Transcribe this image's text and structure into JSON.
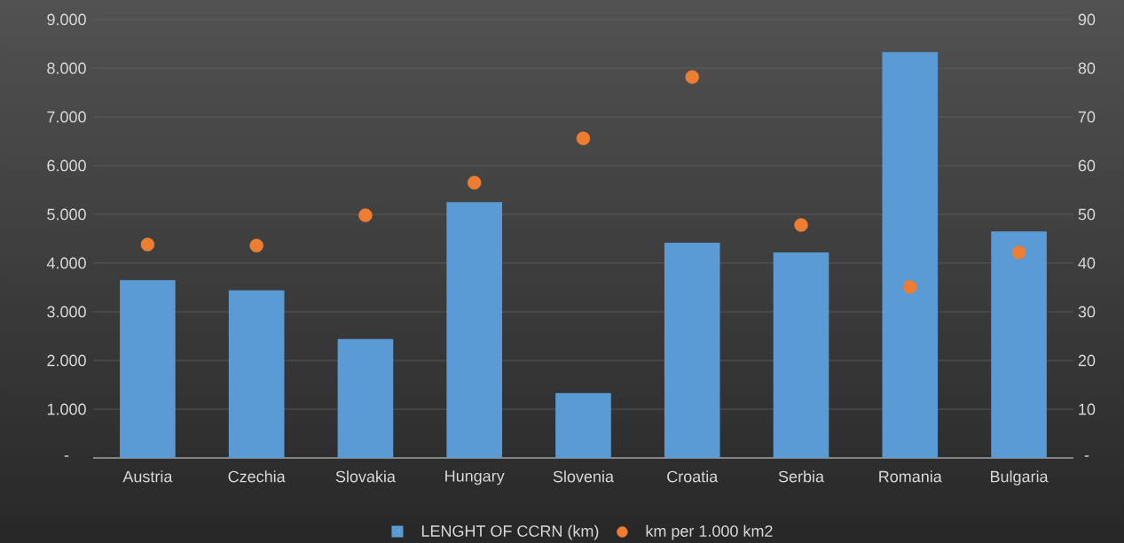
{
  "chart_data": {
    "type": "bar",
    "categories": [
      "Austria",
      "Czechia",
      "Slovakia",
      "Hungary",
      "Slovenia",
      "Croatia",
      "Serbia",
      "Romania",
      "Bulgaria"
    ],
    "series": [
      {
        "name": "LENGHT OF CCRN (km)",
        "axis": "y",
        "color": "#5b9bd5",
        "values": [
          3650,
          3440,
          2440,
          5250,
          1330,
          4420,
          4220,
          8330,
          4650
        ]
      },
      {
        "name": "km per 1.000 km2",
        "type": "scatter",
        "axis": "y2",
        "color": "#ed7d31",
        "values": [
          43.8,
          43.6,
          49.8,
          56.5,
          65.6,
          78.2,
          47.8,
          35.1,
          42.2
        ]
      }
    ],
    "ylim": [
      0,
      9000
    ],
    "yticks": [
      {
        "value": 0,
        "label": "-"
      },
      {
        "value": 1000,
        "label": "1.000"
      },
      {
        "value": 2000,
        "label": "2.000"
      },
      {
        "value": 3000,
        "label": "3.000"
      },
      {
        "value": 4000,
        "label": "4.000"
      },
      {
        "value": 5000,
        "label": "5.000"
      },
      {
        "value": 6000,
        "label": "6.000"
      },
      {
        "value": 7000,
        "label": "7.000"
      },
      {
        "value": 8000,
        "label": "8.000"
      },
      {
        "value": 9000,
        "label": "9.000"
      }
    ],
    "y2lim": [
      0,
      90
    ],
    "y2ticks": [
      {
        "value": 0,
        "label": "-"
      },
      10,
      20,
      30,
      40,
      50,
      60,
      70,
      80,
      90
    ],
    "grid": "y",
    "legend": "bottom",
    "marker": "circle"
  }
}
